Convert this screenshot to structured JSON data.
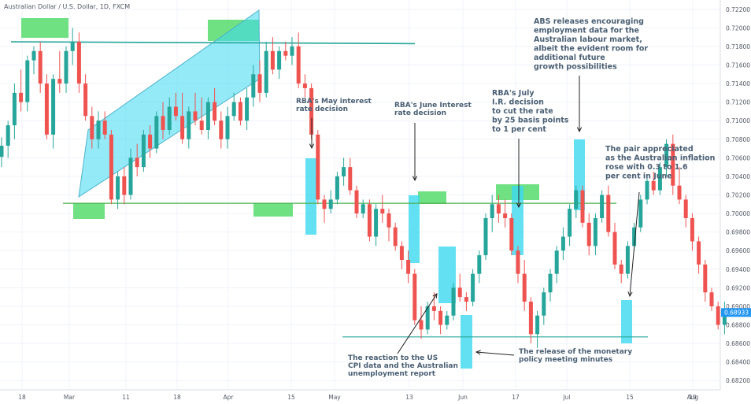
{
  "chart_data": {
    "type": "candlestick",
    "title": "Australian Dollar / U.S. Dollar, 1D, FXCM",
    "ylim": [
      0.681,
      0.723
    ],
    "y_ticks": [
      "0.72200",
      "0.72000",
      "0.71800",
      "0.71600",
      "0.71400",
      "0.71200",
      "0.71000",
      "0.70800",
      "0.70600",
      "0.70400",
      "0.70200",
      "0.70000",
      "0.69800",
      "0.69600",
      "0.69400",
      "0.69200",
      "0.69000",
      "0.68800",
      "0.68600",
      "0.68400",
      "0.68200"
    ],
    "x_ticks": [
      "18",
      "Mar",
      "11",
      "18",
      "Apr",
      "15",
      "May",
      "13",
      "Jun",
      "17",
      "Jul",
      "15",
      "Aug",
      "19"
    ],
    "last_price": "0.68933",
    "colors": {
      "up": "#26a69a",
      "down": "#ef5350",
      "price_tag": "#2196f3",
      "highlight_green": "#4cd964",
      "highlight_cyan": "#3cd9f0",
      "resistance_line": "#26a69a",
      "support_line": "#4caf50"
    },
    "candles": [
      {
        "o": 0.7061,
        "h": 0.7082,
        "l": 0.705,
        "c": 0.7073
      },
      {
        "o": 0.7073,
        "h": 0.71,
        "l": 0.706,
        "c": 0.7095
      },
      {
        "o": 0.7095,
        "h": 0.714,
        "l": 0.708,
        "c": 0.713
      },
      {
        "o": 0.713,
        "h": 0.7155,
        "l": 0.711,
        "c": 0.712
      },
      {
        "o": 0.712,
        "h": 0.717,
        "l": 0.711,
        "c": 0.7165
      },
      {
        "o": 0.7165,
        "h": 0.718,
        "l": 0.715,
        "c": 0.7175
      },
      {
        "o": 0.7175,
        "h": 0.7185,
        "l": 0.713,
        "c": 0.714
      },
      {
        "o": 0.714,
        "h": 0.715,
        "l": 0.708,
        "c": 0.7085
      },
      {
        "o": 0.7085,
        "h": 0.715,
        "l": 0.707,
        "c": 0.7145
      },
      {
        "o": 0.7145,
        "h": 0.7175,
        "l": 0.713,
        "c": 0.714
      },
      {
        "o": 0.714,
        "h": 0.718,
        "l": 0.713,
        "c": 0.7175
      },
      {
        "o": 0.7175,
        "h": 0.72,
        "l": 0.716,
        "c": 0.7185
      },
      {
        "o": 0.7185,
        "h": 0.7195,
        "l": 0.713,
        "c": 0.714
      },
      {
        "o": 0.714,
        "h": 0.715,
        "l": 0.71,
        "c": 0.7105
      },
      {
        "o": 0.7105,
        "h": 0.7115,
        "l": 0.707,
        "c": 0.708
      },
      {
        "o": 0.708,
        "h": 0.711,
        "l": 0.707,
        "c": 0.71
      },
      {
        "o": 0.71,
        "h": 0.711,
        "l": 0.708,
        "c": 0.7085
      },
      {
        "o": 0.7085,
        "h": 0.709,
        "l": 0.701,
        "c": 0.7015
      },
      {
        "o": 0.7015,
        "h": 0.7045,
        "l": 0.7005,
        "c": 0.704
      },
      {
        "o": 0.704,
        "h": 0.705,
        "l": 0.701,
        "c": 0.702
      },
      {
        "o": 0.702,
        "h": 0.707,
        "l": 0.7015,
        "c": 0.706
      },
      {
        "o": 0.706,
        "h": 0.7075,
        "l": 0.704,
        "c": 0.705
      },
      {
        "o": 0.705,
        "h": 0.709,
        "l": 0.7045,
        "c": 0.7085
      },
      {
        "o": 0.7085,
        "h": 0.7095,
        "l": 0.706,
        "c": 0.707
      },
      {
        "o": 0.707,
        "h": 0.711,
        "l": 0.7065,
        "c": 0.7105
      },
      {
        "o": 0.7105,
        "h": 0.712,
        "l": 0.708,
        "c": 0.709
      },
      {
        "o": 0.709,
        "h": 0.7125,
        "l": 0.7085,
        "c": 0.7115
      },
      {
        "o": 0.7115,
        "h": 0.713,
        "l": 0.71,
        "c": 0.7105
      },
      {
        "o": 0.7105,
        "h": 0.713,
        "l": 0.7075,
        "c": 0.708
      },
      {
        "o": 0.708,
        "h": 0.7115,
        "l": 0.707,
        "c": 0.711
      },
      {
        "o": 0.711,
        "h": 0.713,
        "l": 0.7095,
        "c": 0.71
      },
      {
        "o": 0.71,
        "h": 0.7125,
        "l": 0.7085,
        "c": 0.709
      },
      {
        "o": 0.709,
        "h": 0.7125,
        "l": 0.708,
        "c": 0.712
      },
      {
        "o": 0.712,
        "h": 0.7135,
        "l": 0.7095,
        "c": 0.71
      },
      {
        "o": 0.71,
        "h": 0.711,
        "l": 0.707,
        "c": 0.708
      },
      {
        "o": 0.708,
        "h": 0.7115,
        "l": 0.707,
        "c": 0.7105
      },
      {
        "o": 0.7105,
        "h": 0.713,
        "l": 0.71,
        "c": 0.712
      },
      {
        "o": 0.712,
        "h": 0.7125,
        "l": 0.7095,
        "c": 0.71
      },
      {
        "o": 0.71,
        "h": 0.7135,
        "l": 0.709,
        "c": 0.7125
      },
      {
        "o": 0.7125,
        "h": 0.716,
        "l": 0.7115,
        "c": 0.715
      },
      {
        "o": 0.715,
        "h": 0.7165,
        "l": 0.712,
        "c": 0.713
      },
      {
        "o": 0.713,
        "h": 0.7185,
        "l": 0.7125,
        "c": 0.7175
      },
      {
        "o": 0.7175,
        "h": 0.719,
        "l": 0.715,
        "c": 0.7155
      },
      {
        "o": 0.7155,
        "h": 0.718,
        "l": 0.7145,
        "c": 0.7175
      },
      {
        "o": 0.7175,
        "h": 0.7185,
        "l": 0.7165,
        "c": 0.717
      },
      {
        "o": 0.717,
        "h": 0.719,
        "l": 0.716,
        "c": 0.718
      },
      {
        "o": 0.718,
        "h": 0.7195,
        "l": 0.7135,
        "c": 0.714
      },
      {
        "o": 0.714,
        "h": 0.715,
        "l": 0.7125,
        "c": 0.7135
      },
      {
        "o": 0.7135,
        "h": 0.714,
        "l": 0.708,
        "c": 0.7085
      },
      {
        "o": 0.7085,
        "h": 0.709,
        "l": 0.701,
        "c": 0.7015
      },
      {
        "o": 0.7015,
        "h": 0.702,
        "l": 0.699,
        "c": 0.7005
      },
      {
        "o": 0.7005,
        "h": 0.7025,
        "l": 0.7,
        "c": 0.7015
      },
      {
        "o": 0.7015,
        "h": 0.7045,
        "l": 0.701,
        "c": 0.704
      },
      {
        "o": 0.704,
        "h": 0.706,
        "l": 0.703,
        "c": 0.705
      },
      {
        "o": 0.705,
        "h": 0.706,
        "l": 0.702,
        "c": 0.7025
      },
      {
        "o": 0.7025,
        "h": 0.703,
        "l": 0.6995,
        "c": 0.7
      },
      {
        "o": 0.7,
        "h": 0.7015,
        "l": 0.6995,
        "c": 0.701
      },
      {
        "o": 0.701,
        "h": 0.7015,
        "l": 0.697,
        "c": 0.6975
      },
      {
        "o": 0.6975,
        "h": 0.701,
        "l": 0.6965,
        "c": 0.7005
      },
      {
        "o": 0.7005,
        "h": 0.702,
        "l": 0.699,
        "c": 0.7
      },
      {
        "o": 0.7,
        "h": 0.7005,
        "l": 0.697,
        "c": 0.6985
      },
      {
        "o": 0.6985,
        "h": 0.699,
        "l": 0.696,
        "c": 0.6965
      },
      {
        "o": 0.6965,
        "h": 0.697,
        "l": 0.694,
        "c": 0.695
      },
      {
        "o": 0.695,
        "h": 0.696,
        "l": 0.6925,
        "c": 0.6935
      },
      {
        "o": 0.6935,
        "h": 0.694,
        "l": 0.688,
        "c": 0.6885
      },
      {
        "o": 0.6885,
        "h": 0.69,
        "l": 0.6865,
        "c": 0.6875
      },
      {
        "o": 0.6875,
        "h": 0.6905,
        "l": 0.687,
        "c": 0.69
      },
      {
        "o": 0.69,
        "h": 0.6915,
        "l": 0.6885,
        "c": 0.6895
      },
      {
        "o": 0.6895,
        "h": 0.69,
        "l": 0.687,
        "c": 0.688
      },
      {
        "o": 0.688,
        "h": 0.6895,
        "l": 0.6875,
        "c": 0.689
      },
      {
        "o": 0.689,
        "h": 0.6925,
        "l": 0.6885,
        "c": 0.692
      },
      {
        "o": 0.692,
        "h": 0.6935,
        "l": 0.6905,
        "c": 0.691
      },
      {
        "o": 0.691,
        "h": 0.6915,
        "l": 0.6895,
        "c": 0.6905
      },
      {
        "o": 0.6905,
        "h": 0.694,
        "l": 0.69,
        "c": 0.6935
      },
      {
        "o": 0.6935,
        "h": 0.696,
        "l": 0.6925,
        "c": 0.6955
      },
      {
        "o": 0.6955,
        "h": 0.7,
        "l": 0.695,
        "c": 0.6995
      },
      {
        "o": 0.6995,
        "h": 0.702,
        "l": 0.698,
        "c": 0.701
      },
      {
        "o": 0.701,
        "h": 0.702,
        "l": 0.699,
        "c": 0.7
      },
      {
        "o": 0.7,
        "h": 0.7015,
        "l": 0.6985,
        "c": 0.6995
      },
      {
        "o": 0.6995,
        "h": 0.7,
        "l": 0.6955,
        "c": 0.696
      },
      {
        "o": 0.696,
        "h": 0.6965,
        "l": 0.6925,
        "c": 0.6935
      },
      {
        "o": 0.6935,
        "h": 0.695,
        "l": 0.6895,
        "c": 0.6905
      },
      {
        "o": 0.6905,
        "h": 0.691,
        "l": 0.686,
        "c": 0.687
      },
      {
        "o": 0.687,
        "h": 0.6895,
        "l": 0.6855,
        "c": 0.689
      },
      {
        "o": 0.689,
        "h": 0.692,
        "l": 0.688,
        "c": 0.6915
      },
      {
        "o": 0.6915,
        "h": 0.694,
        "l": 0.6905,
        "c": 0.6935
      },
      {
        "o": 0.6935,
        "h": 0.6965,
        "l": 0.6925,
        "c": 0.696
      },
      {
        "o": 0.696,
        "h": 0.6985,
        "l": 0.695,
        "c": 0.6975
      },
      {
        "o": 0.6975,
        "h": 0.701,
        "l": 0.6965,
        "c": 0.7005
      },
      {
        "o": 0.7005,
        "h": 0.703,
        "l": 0.6995,
        "c": 0.7025
      },
      {
        "o": 0.7025,
        "h": 0.703,
        "l": 0.6985,
        "c": 0.699
      },
      {
        "o": 0.699,
        "h": 0.7,
        "l": 0.6955,
        "c": 0.6965
      },
      {
        "o": 0.6965,
        "h": 0.7,
        "l": 0.6955,
        "c": 0.6995
      },
      {
        "o": 0.6995,
        "h": 0.7025,
        "l": 0.699,
        "c": 0.702
      },
      {
        "o": 0.702,
        "h": 0.703,
        "l": 0.6975,
        "c": 0.698
      },
      {
        "o": 0.698,
        "h": 0.699,
        "l": 0.694,
        "c": 0.6945
      },
      {
        "o": 0.6945,
        "h": 0.695,
        "l": 0.6925,
        "c": 0.6935
      },
      {
        "o": 0.6935,
        "h": 0.697,
        "l": 0.693,
        "c": 0.6965
      },
      {
        "o": 0.6965,
        "h": 0.699,
        "l": 0.696,
        "c": 0.6985
      },
      {
        "o": 0.6985,
        "h": 0.702,
        "l": 0.698,
        "c": 0.7015
      },
      {
        "o": 0.7015,
        "h": 0.704,
        "l": 0.701,
        "c": 0.7035
      },
      {
        "o": 0.7035,
        "h": 0.7045,
        "l": 0.702,
        "c": 0.7025
      },
      {
        "o": 0.7025,
        "h": 0.7055,
        "l": 0.702,
        "c": 0.705
      },
      {
        "o": 0.705,
        "h": 0.708,
        "l": 0.704,
        "c": 0.7075
      },
      {
        "o": 0.7075,
        "h": 0.7085,
        "l": 0.702,
        "c": 0.703
      },
      {
        "o": 0.703,
        "h": 0.705,
        "l": 0.701,
        "c": 0.7015
      },
      {
        "o": 0.7015,
        "h": 0.702,
        "l": 0.6985,
        "c": 0.6995
      },
      {
        "o": 0.6995,
        "h": 0.7,
        "l": 0.696,
        "c": 0.697
      },
      {
        "o": 0.697,
        "h": 0.6975,
        "l": 0.6935,
        "c": 0.6945
      },
      {
        "o": 0.6945,
        "h": 0.695,
        "l": 0.6905,
        "c": 0.6915
      },
      {
        "o": 0.6915,
        "h": 0.692,
        "l": 0.6895,
        "c": 0.69
      },
      {
        "o": 0.69,
        "h": 0.6905,
        "l": 0.6875,
        "c": 0.688
      },
      {
        "o": 0.688,
        "h": 0.6905,
        "l": 0.687,
        "c": 0.6893
      }
    ],
    "resistance_line": {
      "y_start": 0.7185,
      "y_end": 0.7183
    },
    "support_line_upper": {
      "y": 0.7011
    },
    "support_line_lower": {
      "y": 0.6867
    },
    "annotations": [
      {
        "id": "rba-may",
        "lines": [
          "RBA's May interest",
          "rate decision"
        ]
      },
      {
        "id": "rba-june",
        "lines": [
          "RBA's June Interest",
          "rate decision"
        ]
      },
      {
        "id": "rba-july",
        "lines": [
          "RBA's July",
          "I.R. decision",
          "to cut the rate",
          "by 25 basis points",
          "to 1 per cent"
        ]
      },
      {
        "id": "abs",
        "lines": [
          "ABS releases encouraging",
          "employment data for the",
          "Australian labour market,",
          "albeit the evident room for",
          "additional future",
          "growth possibilities"
        ]
      },
      {
        "id": "inflation",
        "lines": [
          "The pair appreciated",
          "as the Australian inflation",
          "rose with 0.3 to 1.6",
          "per cent in June"
        ]
      },
      {
        "id": "us-cpi",
        "lines": [
          "The reaction to the US",
          "CPI data and the Australian",
          "unemployment report"
        ]
      },
      {
        "id": "minutes",
        "lines": [
          "The release of the monetary",
          "policy meeting minutes"
        ]
      }
    ]
  }
}
